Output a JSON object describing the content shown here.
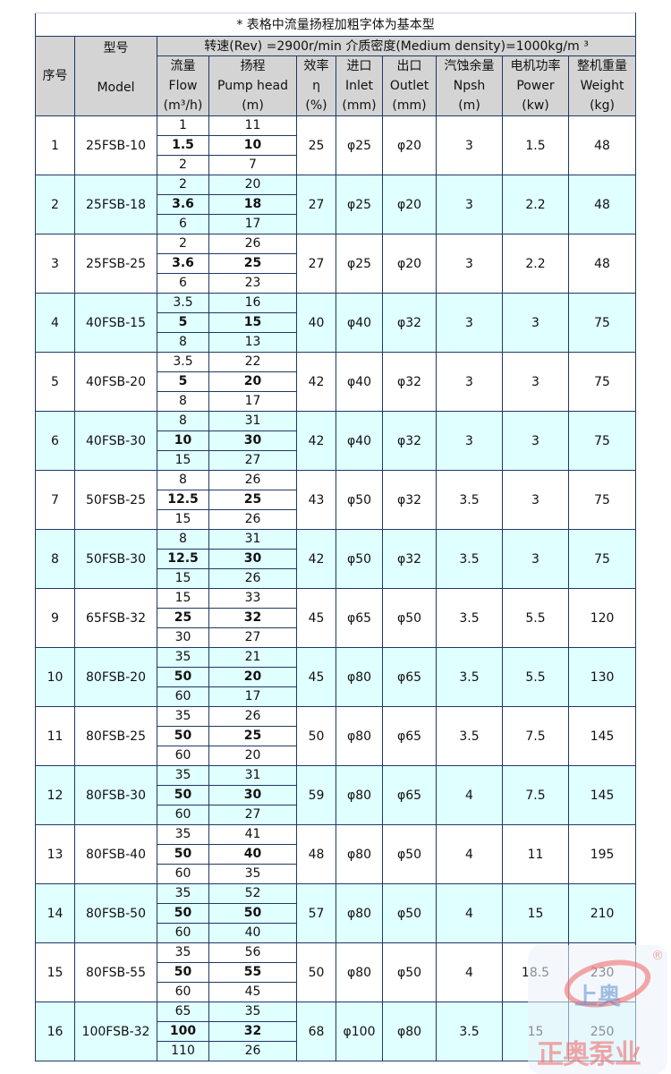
{
  "title": "* 表格中流量扬程加粗字体为基本型",
  "rev_line": "转速(Rev) =2900r/min   介质密度(Medium density)=1000kg/m ³",
  "headers": {
    "no": "序号",
    "model_cn": "型号",
    "model_en": "Model",
    "flow": [
      "流量",
      "Flow",
      "(m³/h)"
    ],
    "head": [
      "扬程",
      "Pump head",
      "(m)"
    ],
    "eff": [
      "效率",
      "η",
      "(%)"
    ],
    "inlet": [
      "进口",
      "Inlet",
      "(mm)"
    ],
    "outlet": [
      "出口",
      "Outlet",
      "(mm)"
    ],
    "npsh": [
      "汽蚀余量",
      "Npsh",
      "(m)"
    ],
    "power": [
      "电机功率",
      "Power",
      "(kw)"
    ],
    "weight": [
      "整机重量",
      "Weight",
      "(kg)"
    ]
  },
  "colors": {
    "border": "#1f3864",
    "header_bg": "#d4d4d4",
    "alt_row_bg": "#e0ffff"
  },
  "rows": [
    {
      "no": "1",
      "model": "25FSB-10",
      "flow": [
        "1",
        "1.5",
        "2"
      ],
      "head": [
        "11",
        "10",
        "7"
      ],
      "eff": "25",
      "inlet": "φ25",
      "outlet": "φ20",
      "npsh": "3",
      "power": "1.5",
      "weight": "48"
    },
    {
      "no": "2",
      "model": "25FSB-18",
      "flow": [
        "2",
        "3.6",
        "6"
      ],
      "head": [
        "20",
        "18",
        "17"
      ],
      "eff": "27",
      "inlet": "φ25",
      "outlet": "φ20",
      "npsh": "3",
      "power": "2.2",
      "weight": "48"
    },
    {
      "no": "3",
      "model": "25FSB-25",
      "flow": [
        "2",
        "3.6",
        "6"
      ],
      "head": [
        "26",
        "25",
        "23"
      ],
      "eff": "27",
      "inlet": "φ25",
      "outlet": "φ20",
      "npsh": "3",
      "power": "2.2",
      "weight": "48"
    },
    {
      "no": "4",
      "model": "40FSB-15",
      "flow": [
        "3.5",
        "5",
        "8"
      ],
      "head": [
        "16",
        "15",
        "13"
      ],
      "eff": "40",
      "inlet": "φ40",
      "outlet": "φ32",
      "npsh": "3",
      "power": "3",
      "weight": "75"
    },
    {
      "no": "5",
      "model": "40FSB-20",
      "flow": [
        "3.5",
        "5",
        "8"
      ],
      "head": [
        "22",
        "20",
        "17"
      ],
      "eff": "42",
      "inlet": "φ40",
      "outlet": "φ32",
      "npsh": "3",
      "power": "3",
      "weight": "75"
    },
    {
      "no": "6",
      "model": "40FSB-30",
      "flow": [
        "8",
        "10",
        "15"
      ],
      "head": [
        "31",
        "30",
        "27"
      ],
      "eff": "42",
      "inlet": "φ40",
      "outlet": "φ32",
      "npsh": "3",
      "power": "3",
      "weight": "75"
    },
    {
      "no": "7",
      "model": "50FSB-25",
      "flow": [
        "8",
        "12.5",
        "15"
      ],
      "head": [
        "26",
        "25",
        "26"
      ],
      "eff": "43",
      "inlet": "φ50",
      "outlet": "φ32",
      "npsh": "3.5",
      "power": "3",
      "weight": "75"
    },
    {
      "no": "8",
      "model": "50FSB-30",
      "flow": [
        "8",
        "12.5",
        "15"
      ],
      "head": [
        "31",
        "30",
        "26"
      ],
      "eff": "42",
      "inlet": "φ50",
      "outlet": "φ32",
      "npsh": "3.5",
      "power": "3",
      "weight": "75"
    },
    {
      "no": "9",
      "model": "65FSB-32",
      "flow": [
        "15",
        "25",
        "30"
      ],
      "head": [
        "33",
        "32",
        "27"
      ],
      "eff": "45",
      "inlet": "φ65",
      "outlet": "φ50",
      "npsh": "3.5",
      "power": "5.5",
      "weight": "120"
    },
    {
      "no": "10",
      "model": "80FSB-20",
      "flow": [
        "35",
        "50",
        "60"
      ],
      "head": [
        "21",
        "20",
        "17"
      ],
      "eff": "45",
      "inlet": "φ80",
      "outlet": "φ65",
      "npsh": "3.5",
      "power": "5.5",
      "weight": "130"
    },
    {
      "no": "11",
      "model": "80FSB-25",
      "flow": [
        "35",
        "50",
        "60"
      ],
      "head": [
        "26",
        "25",
        "20"
      ],
      "eff": "50",
      "inlet": "φ80",
      "outlet": "φ65",
      "npsh": "3.5",
      "power": "7.5",
      "weight": "145"
    },
    {
      "no": "12",
      "model": "80FSB-30",
      "flow": [
        "35",
        "50",
        "60"
      ],
      "head": [
        "31",
        "30",
        "27"
      ],
      "eff": "59",
      "inlet": "φ80",
      "outlet": "φ65",
      "npsh": "4",
      "power": "7.5",
      "weight": "145"
    },
    {
      "no": "13",
      "model": "80FSB-40",
      "flow": [
        "35",
        "50",
        "60"
      ],
      "head": [
        "41",
        "40",
        "35"
      ],
      "eff": "48",
      "inlet": "φ80",
      "outlet": "φ50",
      "npsh": "4",
      "power": "11",
      "weight": "195"
    },
    {
      "no": "14",
      "model": "80FSB-50",
      "flow": [
        "35",
        "50",
        "60"
      ],
      "head": [
        "52",
        "50",
        "40"
      ],
      "eff": "57",
      "inlet": "φ80",
      "outlet": "φ50",
      "npsh": "4",
      "power": "15",
      "weight": "210"
    },
    {
      "no": "15",
      "model": "80FSB-55",
      "flow": [
        "35",
        "50",
        "60"
      ],
      "head": [
        "56",
        "55",
        "45"
      ],
      "eff": "50",
      "inlet": "φ80",
      "outlet": "φ50",
      "npsh": "4",
      "power": "18.5",
      "weight": "230"
    },
    {
      "no": "16",
      "model": "100FSB-32",
      "flow": [
        "65",
        "100",
        "110"
      ],
      "head": [
        "35",
        "32",
        "26"
      ],
      "eff": "68",
      "inlet": "φ100",
      "outlet": "φ80",
      "npsh": "3.5",
      "power": "15",
      "weight": "250"
    }
  ],
  "watermark": {
    "brand_top": "上奥",
    "brand_bottom": "正奥泵业",
    "registered": "®"
  }
}
